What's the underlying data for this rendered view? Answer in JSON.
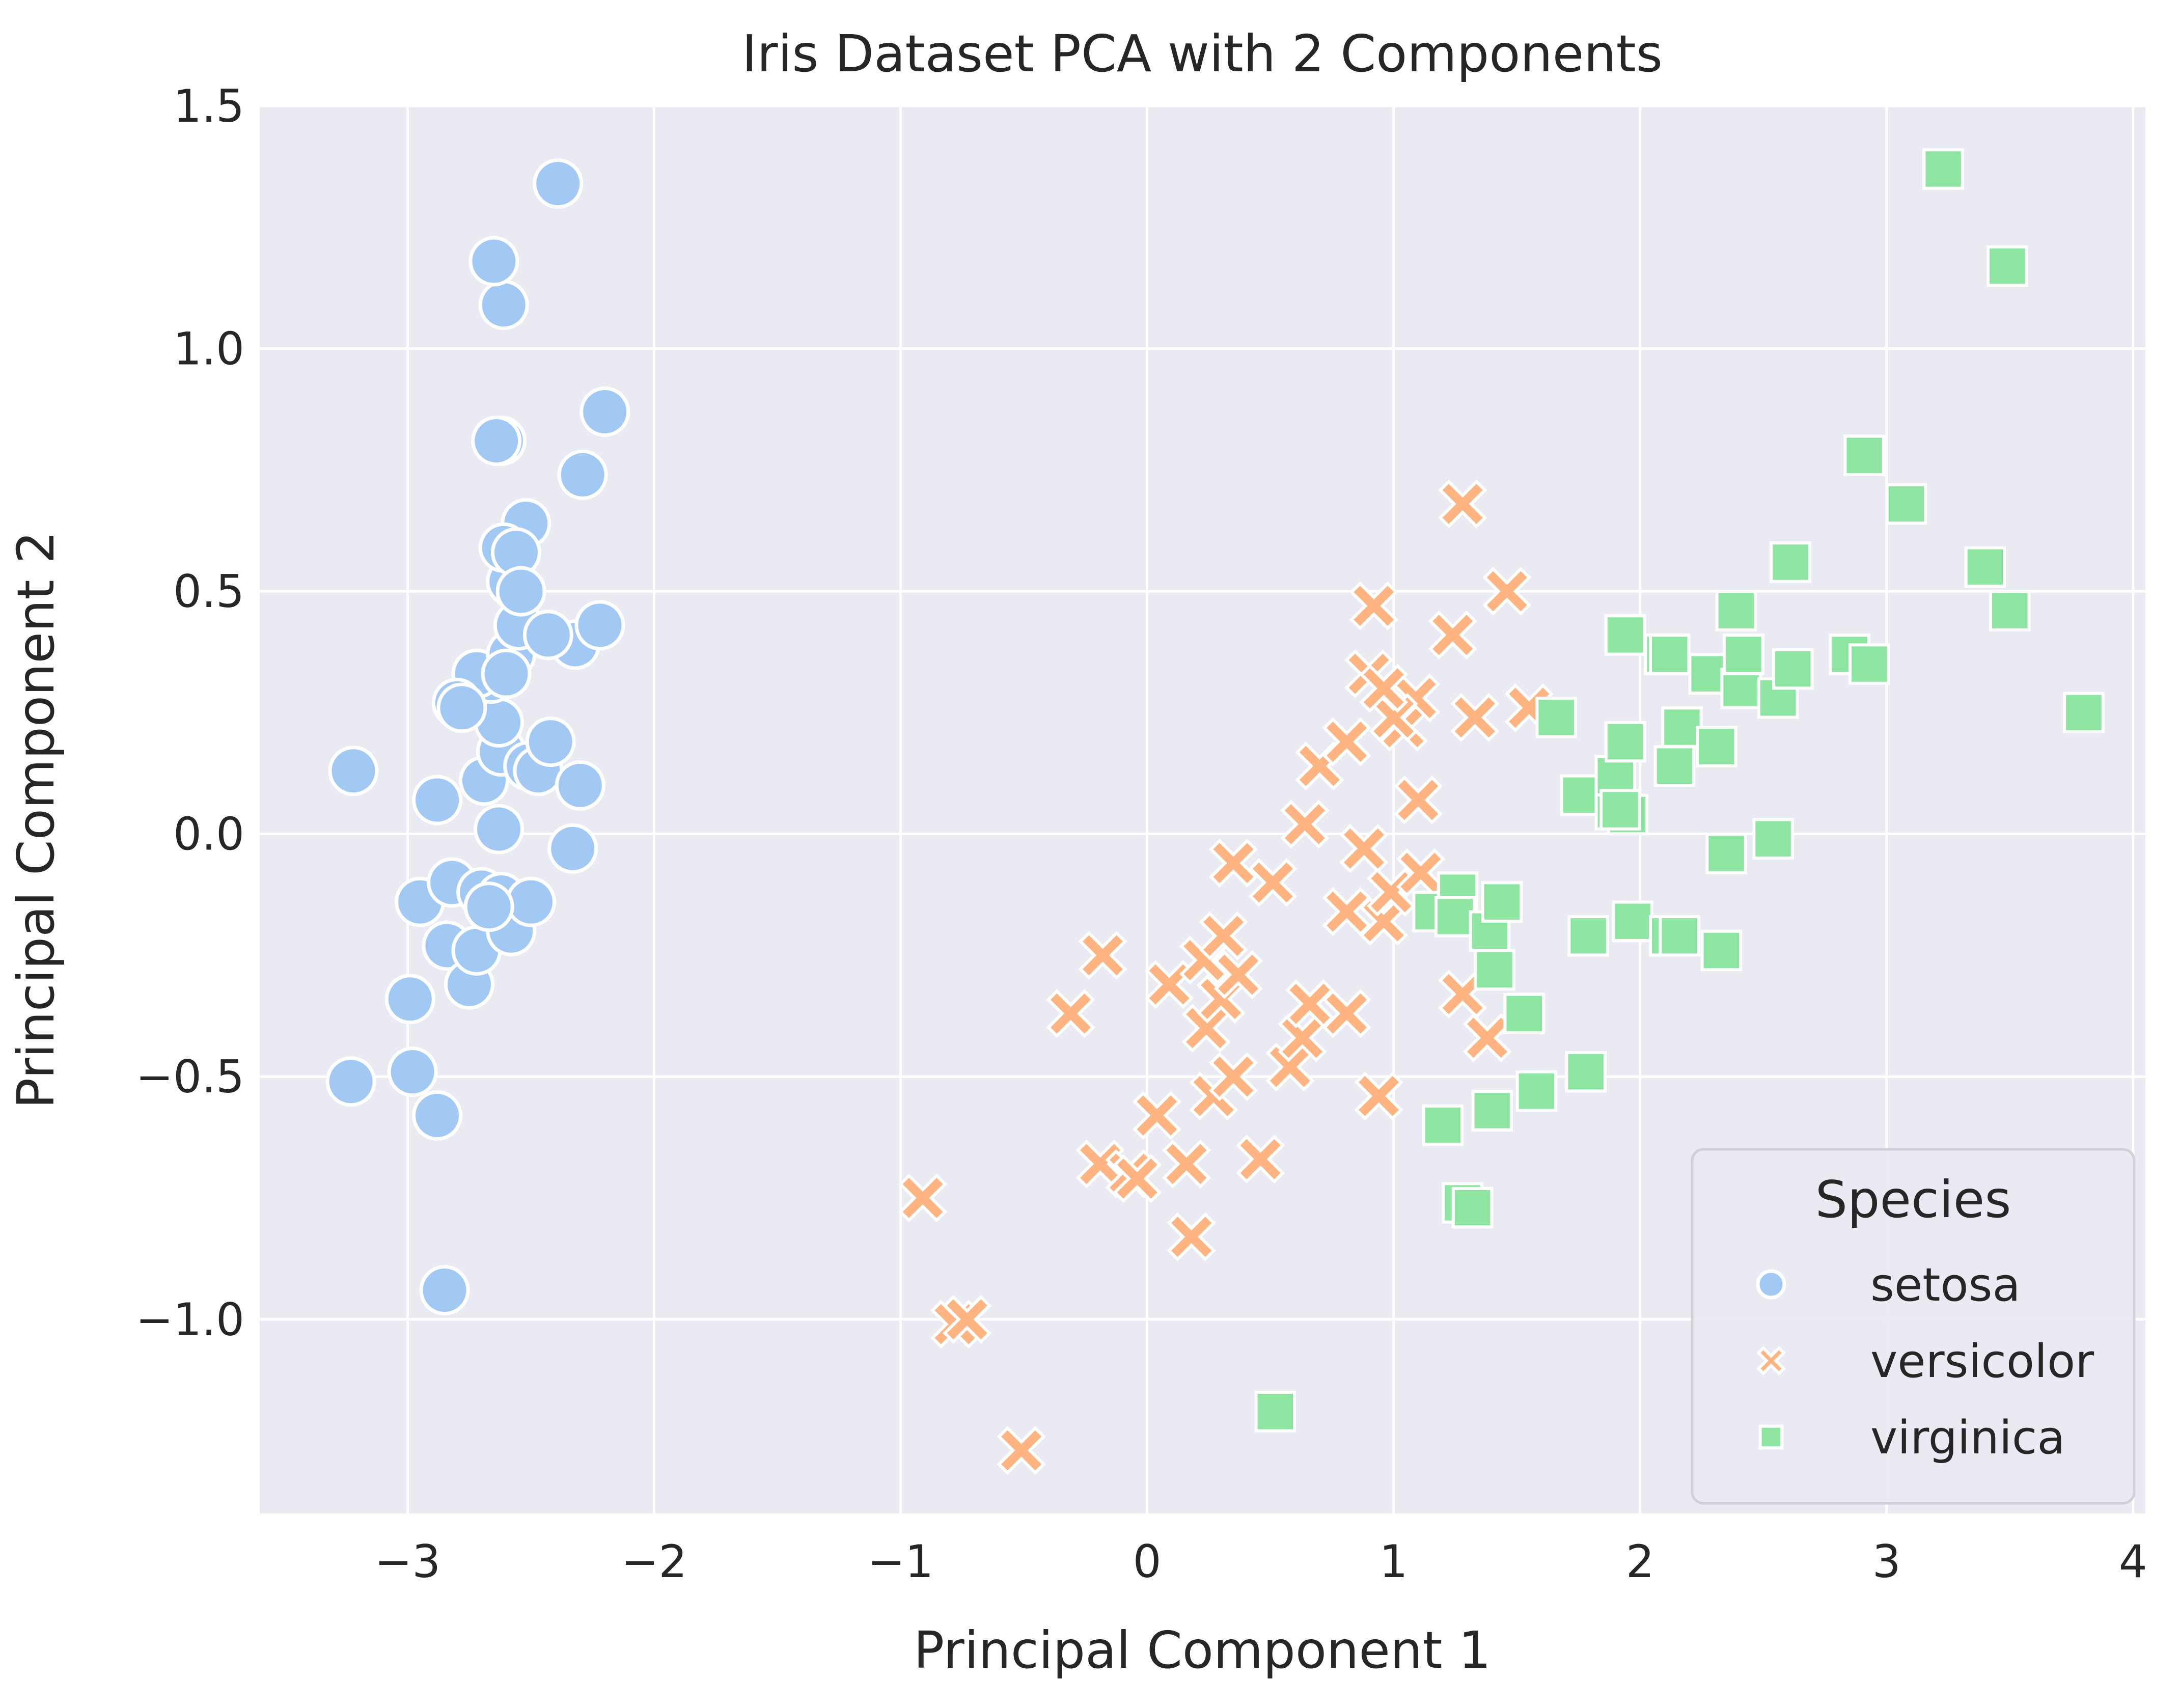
{
  "chart_data": {
    "type": "scatter",
    "title": "Iris Dataset PCA with 2 Components",
    "xlabel": "Principal Component 1",
    "ylabel": "Principal Component 2",
    "xlim": [
      -3.6,
      4.05
    ],
    "ylim": [
      -1.4,
      1.5
    ],
    "xticks": [
      -3,
      -2,
      -1,
      0,
      1,
      2,
      3,
      4
    ],
    "xtick_labels": [
      "−3",
      "−2",
      "−1",
      "0",
      "1",
      "2",
      "3",
      "4"
    ],
    "yticks": [
      -1.0,
      -0.5,
      0.0,
      0.5,
      1.0,
      1.5
    ],
    "ytick_labels": [
      "−1.0",
      "−0.5",
      "0.0",
      "0.5",
      "1.0",
      "1.5"
    ],
    "grid": true,
    "legend": {
      "title": "Species",
      "position": "lower-right"
    },
    "series": [
      {
        "name": "setosa",
        "marker": "circle",
        "color": "#a1c9f4",
        "points": [
          [
            -3.22,
            0.13
          ],
          [
            -3.23,
            -0.51
          ],
          [
            -2.99,
            -0.34
          ],
          [
            -2.98,
            -0.49
          ],
          [
            -2.88,
            -0.58
          ],
          [
            -2.85,
            -0.94
          ],
          [
            -2.95,
            -0.14
          ],
          [
            -2.88,
            0.07
          ],
          [
            -2.84,
            -0.23
          ],
          [
            -2.82,
            -0.1
          ],
          [
            -2.75,
            -0.31
          ],
          [
            -2.72,
            -0.24
          ],
          [
            -2.7,
            -0.12
          ],
          [
            -2.67,
            -0.15
          ],
          [
            -2.62,
            -0.13
          ],
          [
            -2.58,
            -0.2
          ],
          [
            -2.5,
            -0.14
          ],
          [
            -2.67,
            -0.15
          ],
          [
            -2.63,
            0.01
          ],
          [
            -2.69,
            0.11
          ],
          [
            -2.62,
            0.17
          ],
          [
            -2.51,
            0.14
          ],
          [
            -2.47,
            0.13
          ],
          [
            -2.42,
            0.19
          ],
          [
            -2.3,
            0.1
          ],
          [
            -2.33,
            -0.03
          ],
          [
            -2.63,
            0.23
          ],
          [
            -2.66,
            0.32
          ],
          [
            -2.72,
            0.33
          ],
          [
            -2.8,
            0.27
          ],
          [
            -2.78,
            0.26
          ],
          [
            -2.58,
            0.37
          ],
          [
            -2.55,
            0.43
          ],
          [
            -2.32,
            0.39
          ],
          [
            -2.43,
            0.41
          ],
          [
            -2.22,
            0.43
          ],
          [
            -2.56,
            0.51
          ],
          [
            -2.58,
            0.52
          ],
          [
            -2.52,
            0.64
          ],
          [
            -2.61,
            0.59
          ],
          [
            -2.56,
            0.58
          ],
          [
            -2.29,
            0.74
          ],
          [
            -2.2,
            0.87
          ],
          [
            -2.62,
            0.81
          ],
          [
            -2.64,
            0.81
          ],
          [
            -2.61,
            1.09
          ],
          [
            -2.65,
            1.18
          ],
          [
            -2.39,
            1.34
          ],
          [
            -2.54,
            0.5
          ],
          [
            -2.6,
            0.33
          ]
        ]
      },
      {
        "name": "versicolor",
        "marker": "x",
        "color": "#ffb482",
        "points": [
          [
            -0.91,
            -0.75
          ],
          [
            -0.78,
            -1.01
          ],
          [
            -0.73,
            -1.0
          ],
          [
            -0.51,
            -1.27
          ],
          [
            -0.31,
            -0.37
          ],
          [
            -0.18,
            -0.25
          ],
          [
            -0.19,
            -0.68
          ],
          [
            -0.07,
            -0.7
          ],
          [
            -0.04,
            -0.71
          ],
          [
            0.04,
            -0.58
          ],
          [
            0.09,
            -0.31
          ],
          [
            0.16,
            -0.68
          ],
          [
            0.18,
            -0.83
          ],
          [
            0.23,
            -0.26
          ],
          [
            0.24,
            -0.4
          ],
          [
            0.27,
            -0.54
          ],
          [
            0.3,
            -0.34
          ],
          [
            0.31,
            -0.21
          ],
          [
            0.35,
            -0.06
          ],
          [
            0.37,
            -0.29
          ],
          [
            0.35,
            -0.5
          ],
          [
            0.46,
            -0.67
          ],
          [
            0.51,
            -0.1
          ],
          [
            0.58,
            -0.48
          ],
          [
            0.63,
            -0.42
          ],
          [
            0.66,
            -0.35
          ],
          [
            0.64,
            0.02
          ],
          [
            0.7,
            0.14
          ],
          [
            0.81,
            0.19
          ],
          [
            0.81,
            -0.16
          ],
          [
            0.81,
            -0.37
          ],
          [
            0.88,
            -0.03
          ],
          [
            0.9,
            0.33
          ],
          [
            0.92,
            0.47
          ],
          [
            0.94,
            -0.54
          ],
          [
            0.96,
            -0.18
          ],
          [
            0.99,
            -0.12
          ],
          [
            1.04,
            0.22
          ],
          [
            1.09,
            0.28
          ],
          [
            1.1,
            0.07
          ],
          [
            1.11,
            -0.08
          ],
          [
            1.24,
            0.41
          ],
          [
            1.28,
            0.68
          ],
          [
            1.28,
            -0.33
          ],
          [
            1.33,
            0.24
          ],
          [
            1.38,
            -0.42
          ],
          [
            1.46,
            0.5
          ],
          [
            1.55,
            0.26
          ],
          [
            1.0,
            0.24
          ],
          [
            0.96,
            0.3
          ]
        ]
      },
      {
        "name": "virginica",
        "marker": "square",
        "color": "#8de5a1",
        "points": [
          [
            0.52,
            -1.19
          ],
          [
            1.2,
            -0.6
          ],
          [
            1.28,
            -0.76
          ],
          [
            1.32,
            -0.77
          ],
          [
            1.16,
            -0.16
          ],
          [
            1.26,
            -0.12
          ],
          [
            1.25,
            -0.17
          ],
          [
            1.39,
            -0.2
          ],
          [
            1.41,
            -0.28
          ],
          [
            1.4,
            -0.57
          ],
          [
            1.44,
            -0.14
          ],
          [
            1.53,
            -0.37
          ],
          [
            1.58,
            -0.53
          ],
          [
            1.78,
            -0.49
          ],
          [
            1.79,
            -0.21
          ],
          [
            1.66,
            0.24
          ],
          [
            1.76,
            0.08
          ],
          [
            1.9,
            0.05
          ],
          [
            1.9,
            0.12
          ],
          [
            1.95,
            0.04
          ],
          [
            1.94,
            0.19
          ],
          [
            1.97,
            -0.18
          ],
          [
            2.12,
            -0.21
          ],
          [
            2.14,
            0.14
          ],
          [
            2.17,
            0.22
          ],
          [
            2.16,
            -0.21
          ],
          [
            2.28,
            0.33
          ],
          [
            2.31,
            0.18
          ],
          [
            2.33,
            -0.24
          ],
          [
            2.35,
            -0.04
          ],
          [
            2.39,
            0.46
          ],
          [
            2.41,
            0.3
          ],
          [
            2.42,
            0.37
          ],
          [
            2.54,
            -0.01
          ],
          [
            2.56,
            0.28
          ],
          [
            2.61,
            0.56
          ],
          [
            2.62,
            0.34
          ],
          [
            2.85,
            0.37
          ],
          [
            2.93,
            0.35
          ],
          [
            2.91,
            0.78
          ],
          [
            3.08,
            0.68
          ],
          [
            3.23,
            1.37
          ],
          [
            3.4,
            0.55
          ],
          [
            3.5,
            0.46
          ],
          [
            3.49,
            1.17
          ],
          [
            3.8,
            0.25
          ],
          [
            2.1,
            0.37
          ],
          [
            1.94,
            0.41
          ],
          [
            2.12,
            0.37
          ],
          [
            1.92,
            0.05
          ]
        ]
      }
    ]
  }
}
